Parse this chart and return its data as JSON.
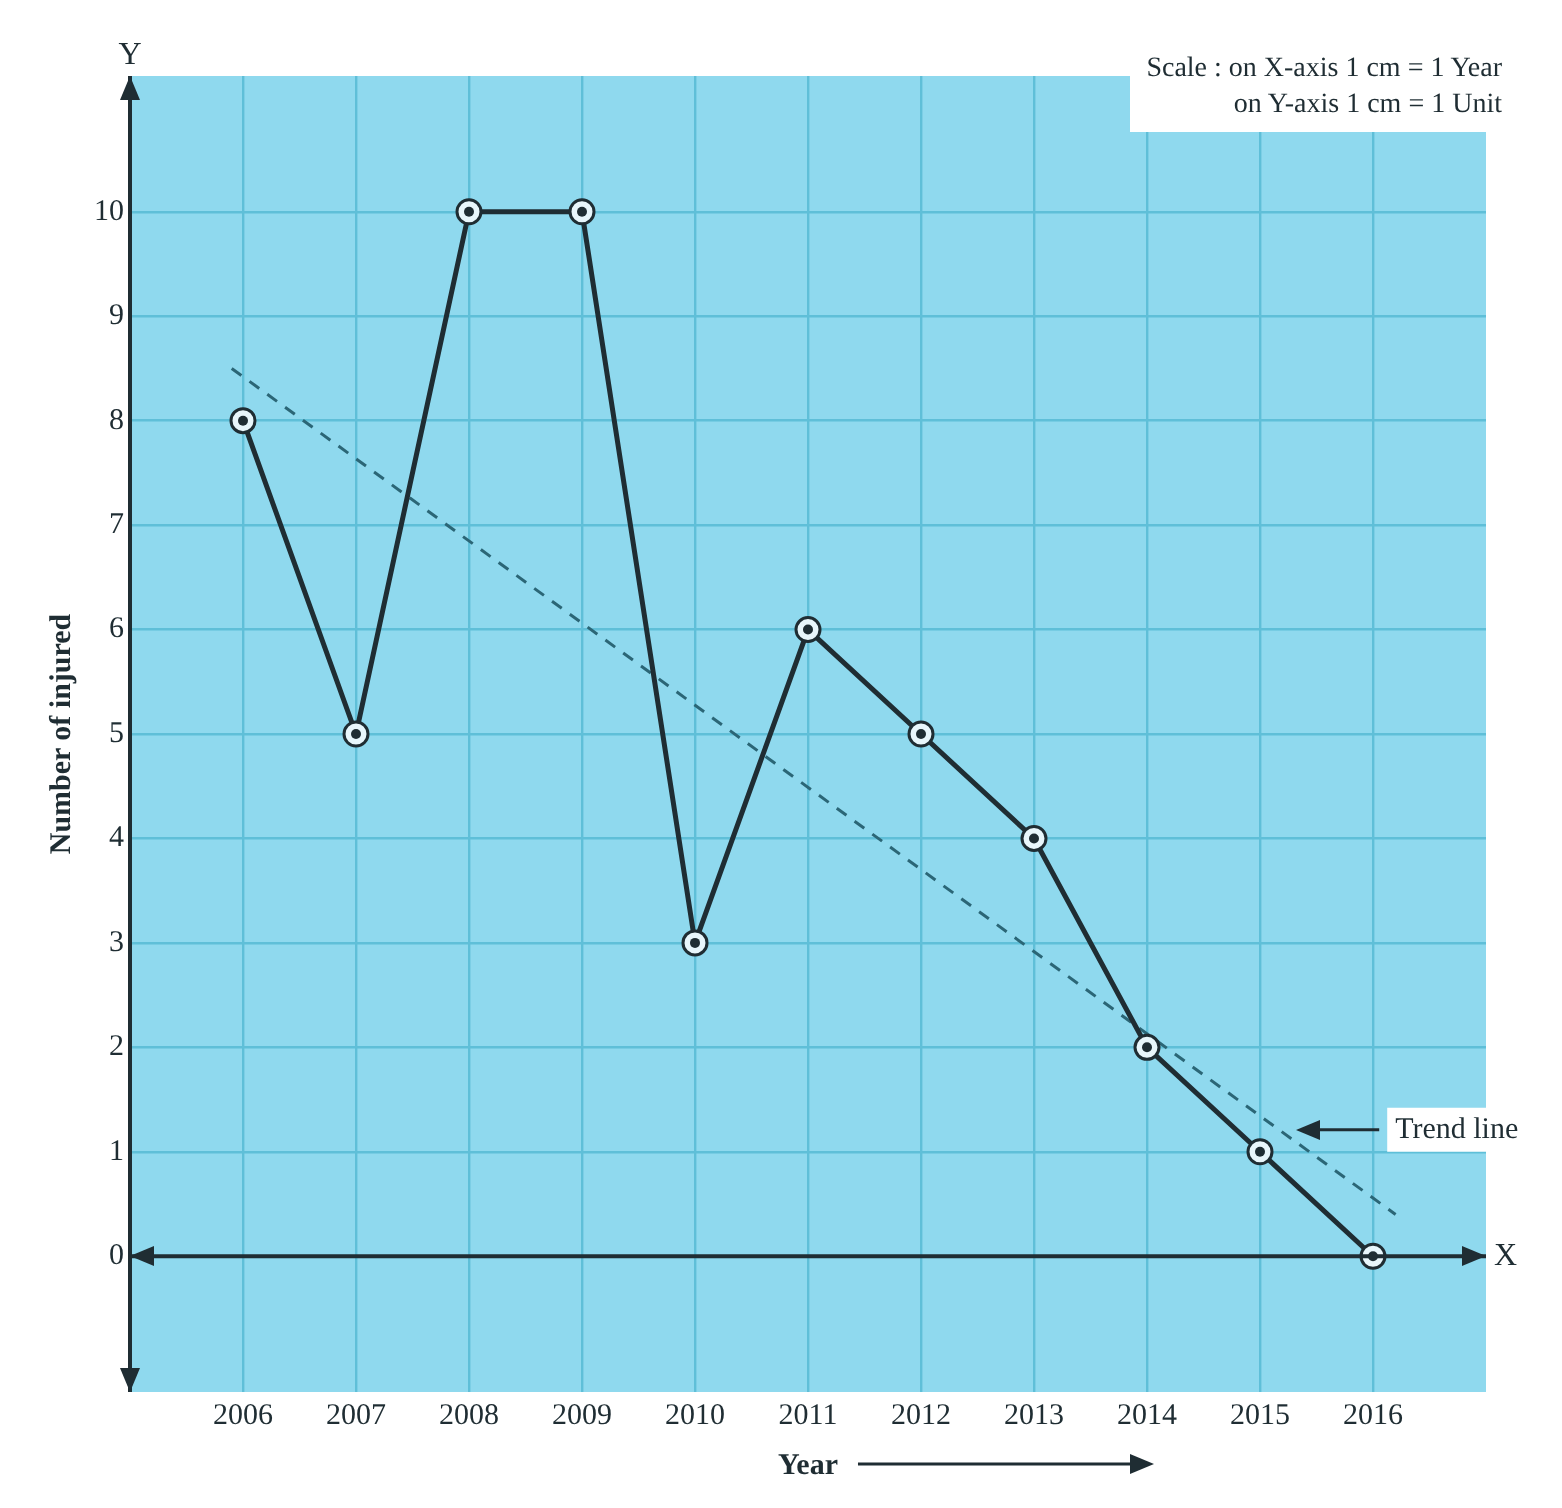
{
  "chart_data": {
    "type": "line",
    "xlabel": "Year",
    "ylabel": "Number of injured",
    "x": [
      2006,
      2007,
      2008,
      2009,
      2010,
      2011,
      2012,
      2013,
      2014,
      2015,
      2016
    ],
    "series": [
      {
        "color": "#1f2d33",
        "values": [
          8,
          5,
          10,
          10,
          3,
          6,
          5,
          4,
          2,
          1,
          0
        ],
        "marker": "circle",
        "line_style": "solid"
      },
      {
        "name": "Trend line",
        "type": "line",
        "color": "#2b6676",
        "x": [
          2005.9,
          2016.2
        ],
        "values": [
          8.5,
          0.4
        ],
        "marker": "none",
        "line_style": "dashed"
      }
    ],
    "xlim": [
      2005,
      2017
    ],
    "xticks": [
      2006,
      2007,
      2008,
      2009,
      2010,
      2011,
      2012,
      2013,
      2014,
      2015,
      2016
    ],
    "ylim": [
      -1.3,
      11.3
    ],
    "yticks": [
      0,
      1,
      2,
      3,
      4,
      5,
      6,
      7,
      8,
      9,
      10
    ],
    "grid": true,
    "legend": false,
    "annotations": [
      "Scale : on X-axis 1 cm = 1 Year",
      "on Y-axis 1 cm = 1 Unit",
      "Y",
      "X"
    ]
  }
}
